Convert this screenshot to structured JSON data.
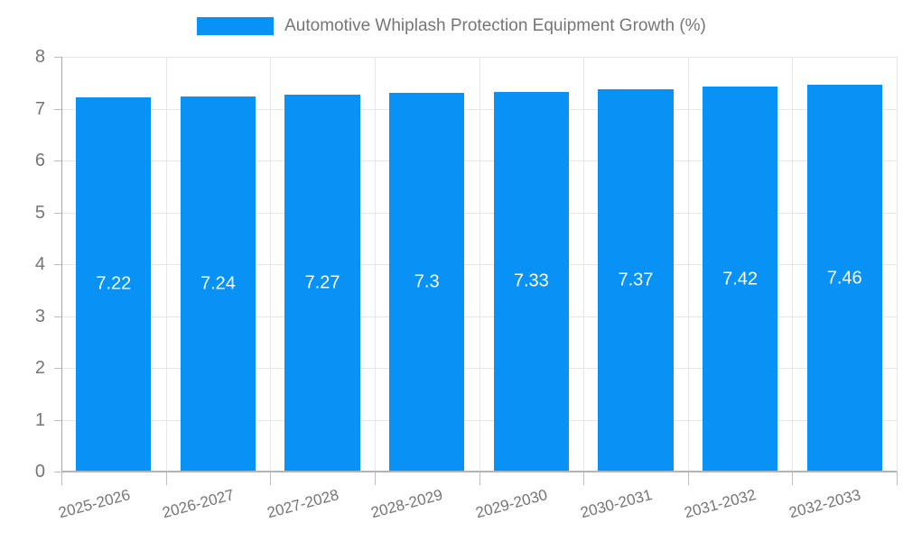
{
  "legend": {
    "label": "Automotive Whiplash Protection Equipment Growth (%)"
  },
  "colors": {
    "bar": "#0992f5",
    "grid": "#e6e6e6",
    "axis_y": "#a6a6a6",
    "axis_x": "#b3b3b3",
    "tick": "#bdbdbd",
    "text": "#757575",
    "value_label": "#ffffff",
    "background": "#ffffff"
  },
  "chart_data": {
    "type": "bar",
    "title": "Automotive Whiplash Protection Equipment Growth (%)",
    "categories": [
      "2025-2026",
      "2026-2027",
      "2027-2028",
      "2028-2029",
      "2029-2030",
      "2030-2031",
      "2031-2032",
      "2032-2033"
    ],
    "values": [
      7.22,
      7.24,
      7.27,
      7.3,
      7.33,
      7.37,
      7.42,
      7.46
    ],
    "value_labels": [
      "7.22",
      "7.24",
      "7.27",
      "7.3",
      "7.33",
      "7.37",
      "7.42",
      "7.46"
    ],
    "xlabel": "",
    "ylabel": "",
    "ylim": [
      0,
      8
    ],
    "ytick_step": 1,
    "yticks": [
      0,
      1,
      2,
      3,
      4,
      5,
      6,
      7,
      8
    ],
    "grid": true,
    "legend_position": "top",
    "value_labels_inside_bars": true,
    "x_label_rotation_deg": -15
  }
}
